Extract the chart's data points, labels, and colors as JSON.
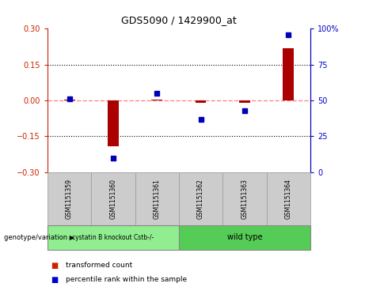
{
  "title": "GDS5090 / 1429900_at",
  "samples": [
    "GSM1151359",
    "GSM1151360",
    "GSM1151361",
    "GSM1151362",
    "GSM1151363",
    "GSM1151364"
  ],
  "transformed_count": [
    0.005,
    -0.19,
    0.005,
    -0.01,
    -0.01,
    0.22
  ],
  "percentile_rank": [
    51,
    10,
    55,
    37,
    43,
    96
  ],
  "groups": [
    {
      "label": "cystatin B knockout Cstb-/-",
      "n": 3,
      "color": "#90EE90"
    },
    {
      "label": "wild type",
      "n": 3,
      "color": "#55CC55"
    }
  ],
  "ylim_left": [
    -0.3,
    0.3
  ],
  "ylim_right": [
    0,
    100
  ],
  "yticks_left": [
    -0.3,
    -0.15,
    0,
    0.15,
    0.3
  ],
  "yticks_right": [
    0,
    25,
    50,
    75,
    100
  ],
  "hline_color": "#FF8888",
  "dotted_lines": [
    -0.15,
    0.15
  ],
  "bar_color": "#AA0000",
  "dot_color": "#0000BB",
  "color_left": "#CC2200",
  "color_right": "#0000CC",
  "bg_color": "#FFFFFF",
  "group_label": "genotype/variation",
  "legend_items": [
    {
      "label": "transformed count",
      "color": "#CC2200"
    },
    {
      "label": "percentile rank within the sample",
      "color": "#0000CC"
    }
  ]
}
